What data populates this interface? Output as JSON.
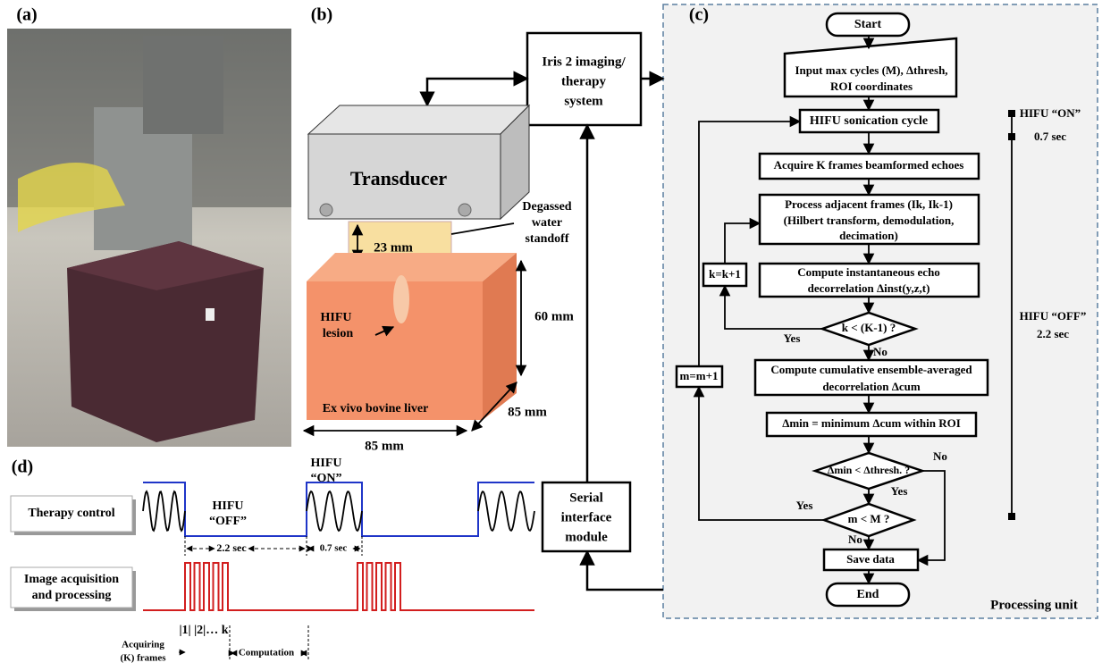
{
  "panels": {
    "a": {
      "label": "(a)"
    },
    "b": {
      "label": "(b)",
      "iris_system": [
        "Iris 2 imaging/",
        "therapy",
        "system"
      ],
      "transducer": "Transducer",
      "standoff_label": [
        "Degassed",
        "water",
        "standoff"
      ],
      "standoff_thickness": "23 mm",
      "depth": "60 mm",
      "lesion": [
        "HIFU",
        "lesion"
      ],
      "liver": "Ex vivo bovine liver",
      "length": "85 mm",
      "width": "85 mm",
      "serial_interface": [
        "Serial",
        "interface",
        "module"
      ]
    },
    "c": {
      "label": "(c)",
      "start": "Start",
      "input": [
        "Input max cycles (M), Δthresh,",
        "ROI coordinates"
      ],
      "sonication": "HIFU sonication cycle",
      "acquire": "Acquire K frames beamformed echoes",
      "process": [
        "Process adjacent frames (Ik, Ik-1)",
        "(Hilbert transform, demodulation,",
        "decimation)"
      ],
      "instantaneous": [
        "Compute instantaneous echo",
        "decorrelation Δinst(y,z,t)"
      ],
      "k_check": "k < (K-1) ?",
      "k_yes": "Yes",
      "k_no": "No",
      "k_increment": "k=k+1",
      "cumulative": [
        "Compute cumulative ensemble-averaged",
        "decorrelation Δcum"
      ],
      "minimum": "Δmin = minimum Δcum within ROI",
      "thresh_check": "Δmin < Δthresh. ?",
      "thresh_no": "No",
      "thresh_yes": "Yes",
      "m_check": "m < M ?",
      "m_yes": "Yes",
      "m_no": "No",
      "m_increment": "m=m+1",
      "save": "Save data",
      "end": "End",
      "unit": "Processing unit",
      "timeline": {
        "on": "HIFU “ON”",
        "on_time": "0.7 sec",
        "off": "HIFU “OFF”",
        "off_time": "2.2 sec"
      }
    },
    "d": {
      "label": "(d)",
      "therapy_control": "Therapy control",
      "image_acquisition": [
        "Image acquisition",
        "and processing"
      ],
      "off": [
        "HIFU",
        "“OFF”"
      ],
      "on": [
        "HIFU",
        "“ON”"
      ],
      "off_time": "2.2 sec",
      "on_time": "0.7 sec",
      "frames": "|1| |2|… k",
      "acquiring": [
        "Acquiring",
        "(K) frames"
      ],
      "computation": "Computation"
    }
  }
}
